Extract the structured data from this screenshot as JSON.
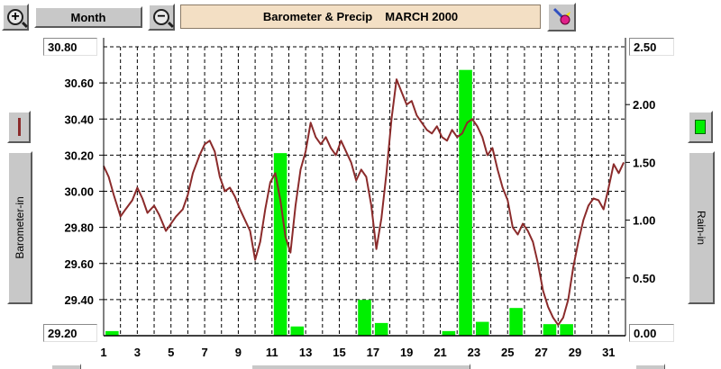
{
  "toolbar": {
    "zoom_in_symbol": "+",
    "zoom_out_symbol": "−",
    "period_label": "Month",
    "title_main": "Barometer & Precip",
    "title_period": "MARCH 2000",
    "tool_icon": "paint-tool-icon"
  },
  "left_panel": {
    "series_label": "Barometer-in",
    "series_color": "#8b2b2b",
    "axis_max_label": "30.80",
    "axis_min_label": "29.20"
  },
  "right_panel": {
    "series_label": "Rain-in",
    "series_color": "#00f000",
    "axis_max_label": "2.50",
    "axis_min_label": "0.00"
  },
  "chart_data": {
    "type": "line+bar",
    "x_ticks": [
      1,
      3,
      5,
      7,
      9,
      11,
      13,
      15,
      17,
      19,
      21,
      23,
      25,
      27,
      29,
      31
    ],
    "x_range": [
      1,
      32
    ],
    "grid": true,
    "left_axis": {
      "name": "Barometer-in",
      "range": [
        29.2,
        30.8
      ],
      "ticks": [
        "29.20",
        "29.40",
        "29.60",
        "29.80",
        "30.00",
        "30.20",
        "30.40",
        "30.60",
        "30.80"
      ]
    },
    "right_axis": {
      "name": "Rain-in",
      "range": [
        0,
        2.5
      ],
      "ticks": [
        "0.00",
        "0.50",
        "1.00",
        "1.50",
        "2.00",
        "2.50"
      ]
    },
    "rain": {
      "name": "Rain-in",
      "days": [
        1,
        11,
        12,
        16,
        17,
        21,
        22,
        23,
        25,
        27,
        28
      ],
      "values": [
        0.04,
        1.58,
        0.08,
        0.31,
        0.11,
        0.04,
        2.3,
        0.12,
        0.24,
        0.1,
        0.1
      ]
    },
    "barometer": {
      "name": "Barometer-in",
      "x": [
        1,
        1.3,
        1.6,
        2.0,
        2.3,
        2.7,
        3.0,
        3.3,
        3.6,
        4.0,
        4.3,
        4.7,
        5.0,
        5.3,
        5.7,
        6.0,
        6.3,
        6.7,
        7.0,
        7.3,
        7.6,
        7.9,
        8.2,
        8.5,
        8.8,
        9.1,
        9.4,
        9.7,
        10.0,
        10.3,
        10.6,
        10.9,
        11.2,
        11.5,
        11.8,
        12.1,
        12.4,
        12.7,
        13.0,
        13.3,
        13.6,
        13.9,
        14.2,
        14.5,
        14.8,
        15.1,
        15.4,
        15.7,
        16.0,
        16.3,
        16.6,
        16.9,
        17.2,
        17.5,
        17.8,
        18.1,
        18.4,
        18.7,
        19.0,
        19.3,
        19.6,
        19.9,
        20.2,
        20.5,
        20.8,
        21.1,
        21.4,
        21.7,
        22.0,
        22.3,
        22.6,
        22.9,
        23.2,
        23.5,
        23.8,
        24.1,
        24.4,
        24.7,
        25.0,
        25.3,
        25.6,
        25.9,
        26.2,
        26.5,
        26.8,
        27.1,
        27.4,
        27.7,
        28.0,
        28.3,
        28.6,
        28.9,
        29.2,
        29.5,
        29.8,
        30.1,
        30.4,
        30.7,
        31.0,
        31.3,
        31.6,
        31.9
      ],
      "y": [
        30.14,
        30.08,
        29.98,
        29.86,
        29.9,
        29.95,
        30.02,
        29.96,
        29.88,
        29.92,
        29.87,
        29.78,
        29.82,
        29.86,
        29.9,
        29.98,
        30.1,
        30.2,
        30.26,
        30.28,
        30.22,
        30.08,
        30.0,
        30.02,
        29.97,
        29.9,
        29.84,
        29.78,
        29.62,
        29.72,
        29.9,
        30.05,
        30.1,
        29.95,
        29.75,
        29.66,
        29.92,
        30.12,
        30.22,
        30.38,
        30.3,
        30.26,
        30.3,
        30.24,
        30.2,
        30.28,
        30.22,
        30.16,
        30.06,
        30.12,
        30.08,
        29.92,
        29.68,
        29.85,
        30.1,
        30.4,
        30.62,
        30.55,
        30.48,
        30.5,
        30.42,
        30.38,
        30.34,
        30.32,
        30.36,
        30.3,
        30.28,
        30.34,
        30.3,
        30.32,
        30.38,
        30.4,
        30.36,
        30.3,
        30.2,
        30.24,
        30.12,
        30.02,
        29.95,
        29.8,
        29.76,
        29.82,
        29.78,
        29.72,
        29.6,
        29.45,
        29.36,
        29.3,
        29.26,
        29.3,
        29.4,
        29.58,
        29.72,
        29.84,
        29.92,
        29.96,
        29.95,
        29.9,
        30.02,
        30.15,
        30.1,
        30.16
      ]
    }
  }
}
